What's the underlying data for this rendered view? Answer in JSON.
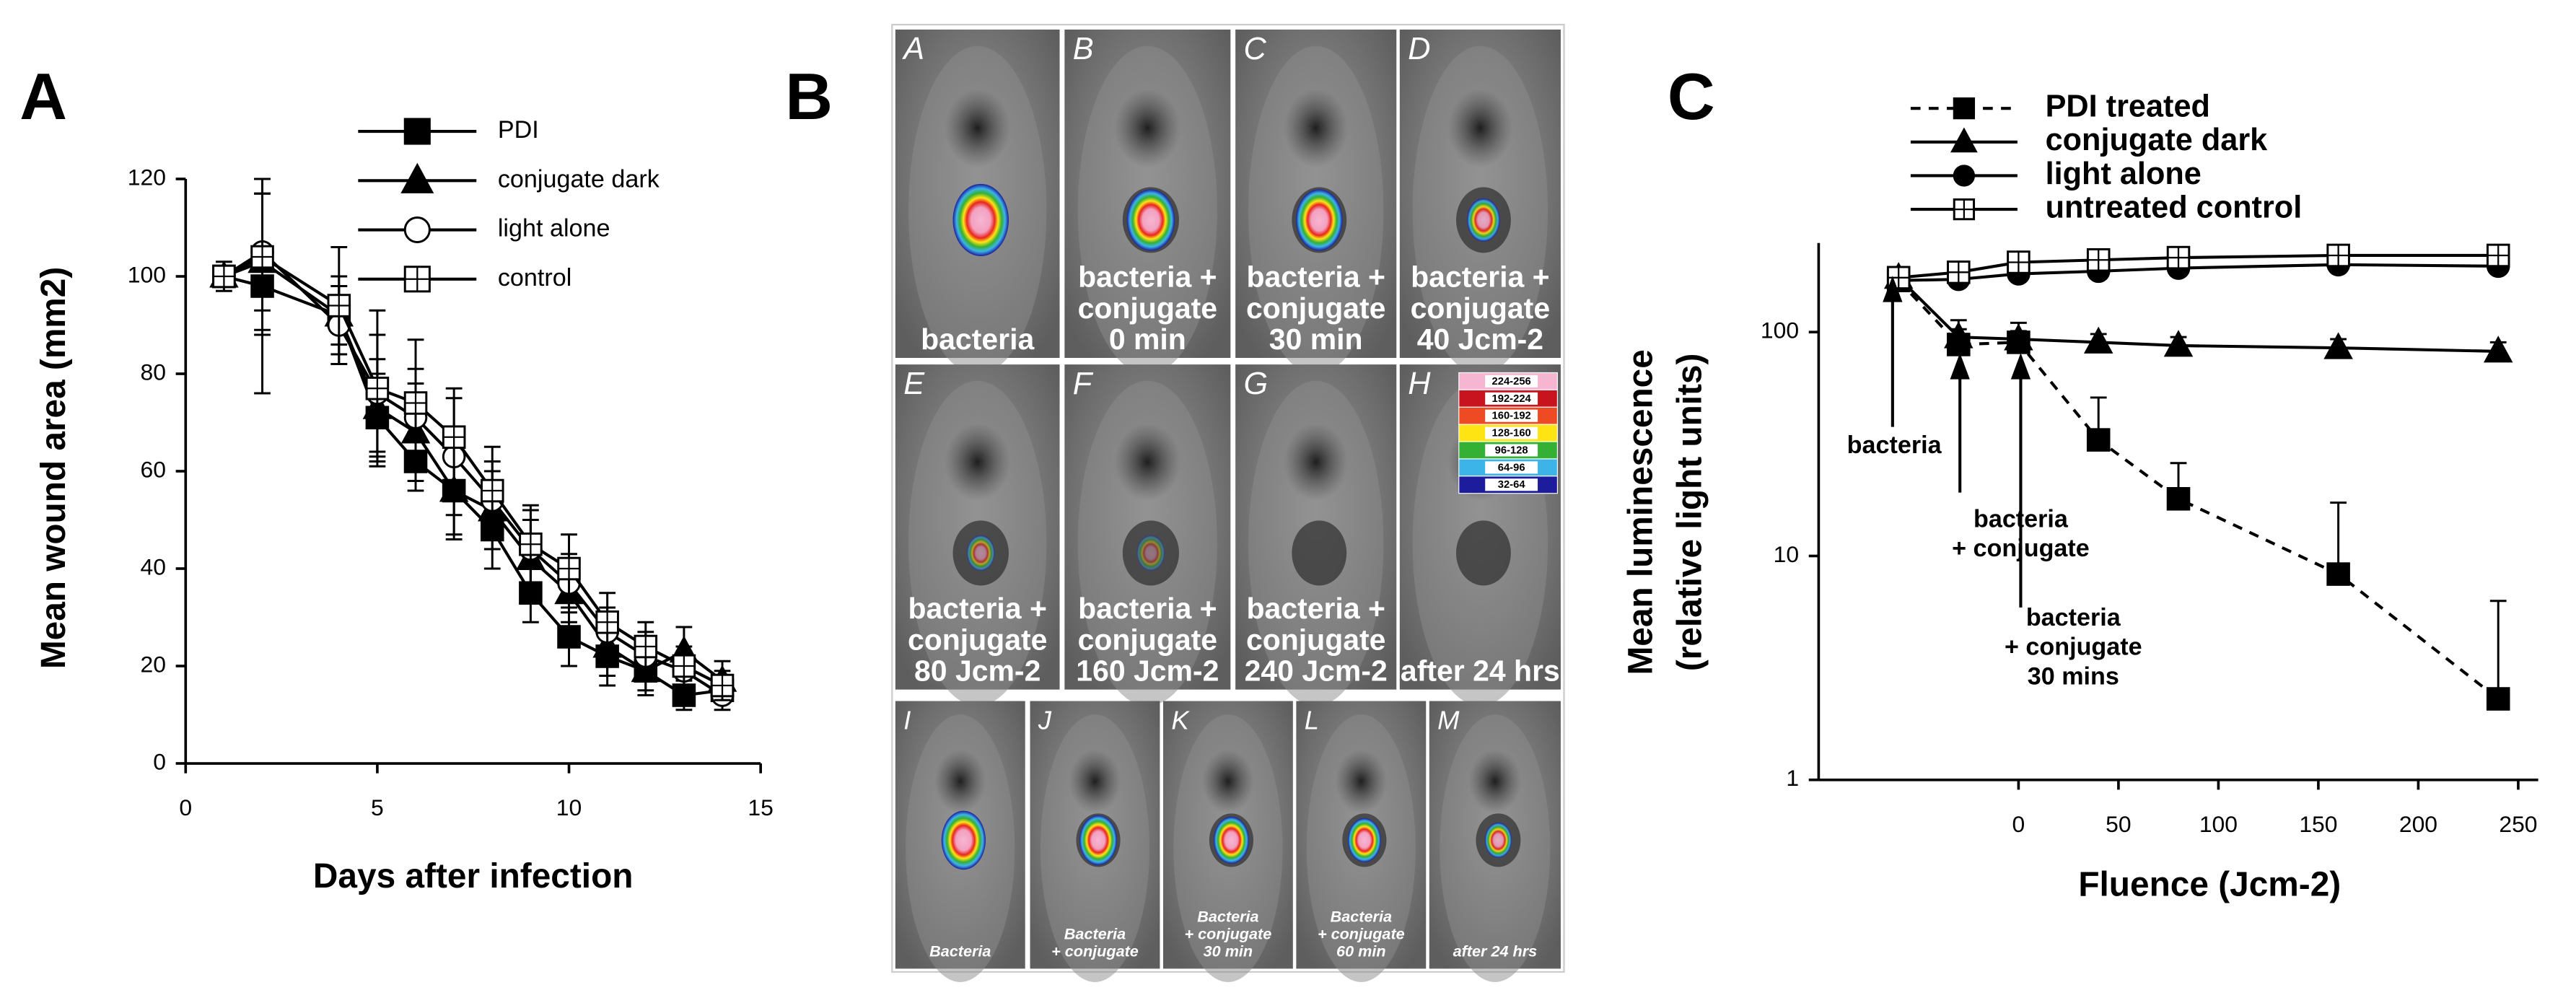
{
  "chart_data": [
    {
      "type": "line",
      "panel": "A",
      "y_label": "Mean wound area (mm2)",
      "x_label": "Days after infection",
      "x": [
        1,
        2,
        4,
        5,
        6,
        7,
        8,
        9,
        10,
        11,
        12,
        13,
        14
      ],
      "xlim": [
        0,
        15
      ],
      "xticks": [
        0,
        5,
        10,
        15
      ],
      "ylim": [
        0,
        120
      ],
      "yticks": [
        0,
        20,
        40,
        60,
        80,
        100,
        120
      ],
      "log_y": false,
      "error_bars": "both",
      "legend": "upper-center",
      "series": [
        {
          "name": "PDI",
          "color": "#000000",
          "marker": "square",
          "filled": true,
          "dashed": false,
          "values": [
            100,
            98,
            92,
            71,
            62,
            56,
            48,
            35,
            26,
            22,
            19,
            14,
            15
          ],
          "errors": [
            3,
            22,
            6,
            9,
            6,
            9,
            8,
            6,
            6,
            6,
            4,
            3,
            2
          ]
        },
        {
          "name": "conjugate dark",
          "color": "#000000",
          "marker": "triangle",
          "filled": true,
          "dashed": false,
          "values": [
            100,
            103,
            92,
            73,
            68,
            56,
            52,
            42,
            35,
            24,
            19,
            23,
            17
          ],
          "errors": [
            2,
            14,
            8,
            10,
            10,
            10,
            8,
            8,
            6,
            6,
            5,
            5,
            4
          ]
        },
        {
          "name": "light alone",
          "color": "#000000",
          "marker": "circle",
          "filled": false,
          "dashed": false,
          "values": [
            100,
            105,
            90,
            76,
            71,
            63,
            54,
            44,
            37,
            27,
            22,
            19,
            14
          ],
          "errors": [
            2,
            12,
            8,
            12,
            10,
            12,
            8,
            8,
            6,
            5,
            5,
            4,
            3
          ]
        },
        {
          "name": "control",
          "color": "#000000",
          "marker": "square-cross",
          "filled": false,
          "dashed": false,
          "values": [
            100,
            104,
            94,
            77,
            74,
            67,
            56,
            45,
            40,
            29,
            24,
            20,
            16
          ],
          "errors": [
            2,
            16,
            12,
            16,
            13,
            10,
            9,
            8,
            7,
            6,
            5,
            4,
            3
          ]
        }
      ]
    },
    {
      "type": "line",
      "panel": "C",
      "y_label": [
        "Mean luminescence",
        "(relative light units)"
      ],
      "x_label": "Fluence (Jcm-2)",
      "x": [
        -60,
        -30,
        0,
        40,
        80,
        160,
        240
      ],
      "xlim": [
        -100,
        260
      ],
      "xticks": [
        0,
        50,
        100,
        150,
        200,
        250
      ],
      "ylim": [
        1,
        250
      ],
      "yticks": [
        1,
        10,
        100
      ],
      "log_y": true,
      "error_bars": "upper",
      "legend": "top",
      "series": [
        {
          "name": "PDI treated",
          "color": "#000000",
          "marker": "square",
          "filled": true,
          "dashed": true,
          "values": [
            170,
            88,
            90,
            33,
            18,
            8.3,
            2.3
          ],
          "errors": [
            15,
            25,
            20,
            18,
            8,
            9,
            4
          ]
        },
        {
          "name": "conjugate dark",
          "color": "#000000",
          "marker": "triangle",
          "filled": true,
          "dashed": false,
          "values": [
            175,
            95,
            93,
            90,
            87,
            85,
            82
          ],
          "errors": [
            15,
            8,
            8,
            8,
            8,
            8,
            8
          ]
        },
        {
          "name": "light alone",
          "color": "#000000",
          "marker": "circle",
          "filled": true,
          "dashed": false,
          "values": [
            170,
            172,
            182,
            187,
            193,
            200,
            197
          ]
        },
        {
          "name": "untreated control",
          "color": "#000000",
          "marker": "square-cross",
          "filled": false,
          "dashed": false,
          "values": [
            175,
            185,
            205,
            210,
            215,
            220,
            220
          ]
        }
      ],
      "annotations": [
        [
          "bacteria"
        ],
        [
          "bacteria",
          "+ conjugate"
        ],
        [
          "bacteria",
          "+ conjugate",
          "30 mins"
        ]
      ]
    }
  ],
  "image_panel": {
    "panel": "B",
    "tiles": [
      {
        "letter": "A",
        "caption": [
          "bacteria"
        ]
      },
      {
        "letter": "B",
        "caption": [
          "bacteria +",
          "conjugate",
          "0 min"
        ]
      },
      {
        "letter": "C",
        "caption": [
          "bacteria +",
          "conjugate",
          "30 min"
        ]
      },
      {
        "letter": "D",
        "caption": [
          "bacteria +",
          "conjugate",
          "40 Jcm-2"
        ]
      },
      {
        "letter": "E",
        "caption": [
          "bacteria +",
          "conjugate",
          "80 Jcm-2"
        ]
      },
      {
        "letter": "F",
        "caption": [
          "bacteria +",
          "conjugate",
          "160 Jcm-2"
        ]
      },
      {
        "letter": "G",
        "caption": [
          "bacteria +",
          "conjugate",
          "240 Jcm-2"
        ]
      },
      {
        "letter": "H",
        "caption": [
          "after 24 hrs"
        ]
      },
      {
        "letter": "I",
        "caption": [
          "Bacteria"
        ]
      },
      {
        "letter": "J",
        "caption": [
          "Bacteria",
          "+ conjugate"
        ]
      },
      {
        "letter": "K",
        "caption": [
          "Bacteria",
          "+ conjugate",
          "30 min"
        ]
      },
      {
        "letter": "L",
        "caption": [
          "Bacteria",
          "+ conjugate",
          "60 min"
        ]
      },
      {
        "letter": "M",
        "caption": [
          "after 24 hrs"
        ]
      }
    ],
    "colorbar": {
      "labels": [
        "224-256",
        "192-224",
        "160-192",
        "128-160",
        "96-128",
        "64-96",
        "32-64"
      ],
      "colors": [
        "#f6b6d2",
        "#c8141e",
        "#ee4a24",
        "#ffe414",
        "#34b034",
        "#3cb4e8",
        "#1c1c9c"
      ]
    }
  }
}
